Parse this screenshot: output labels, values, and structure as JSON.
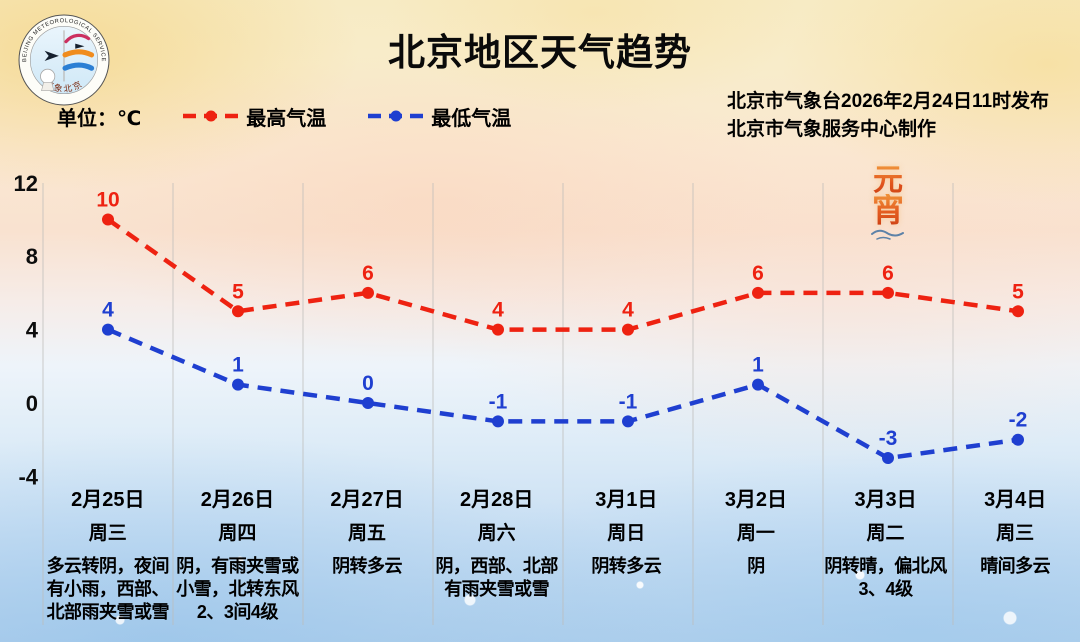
{
  "header": {
    "title": "北京地区天气趋势",
    "issue_line1": "北京市气象台2026年2月24日11时发布",
    "issue_line2": "北京市气象服务中心制作",
    "logo": {
      "ring_text_top": "BEIJING METEOROLOGICAL SERVICE",
      "ring_text_bottom": "气象北京"
    }
  },
  "legend": {
    "unit_label": "单位：℃",
    "max_label": "最高气温",
    "min_label": "最低气温",
    "max_color": "#ee2211",
    "min_color": "#1f3fd0"
  },
  "decoration": {
    "char1": "元",
    "char2": "宵",
    "wave_color": "#5d82a8"
  },
  "chart_data": {
    "type": "line",
    "title": "北京地区天气趋势",
    "unit": "℃",
    "x": [
      "2月25日",
      "2月26日",
      "2月27日",
      "2月28日",
      "3月1日",
      "3月2日",
      "3月3日",
      "3月4日"
    ],
    "weekdays": [
      "周三",
      "周四",
      "周五",
      "周六",
      "周日",
      "周一",
      "周二",
      "周三"
    ],
    "series": [
      {
        "name": "最高气温",
        "color": "#ee2211",
        "values": [
          10,
          5,
          6,
          4,
          4,
          6,
          6,
          5
        ]
      },
      {
        "name": "最低气温",
        "color": "#1f3fd0",
        "values": [
          4,
          1,
          0,
          -1,
          -1,
          1,
          -3,
          -2
        ]
      }
    ],
    "yticks": [
      12,
      8,
      4,
      0,
      -4
    ],
    "ylim": [
      -6,
      13
    ],
    "grid": "vertical-only",
    "gridline_color": "#bdbcb9",
    "legend_position": "top-left",
    "line_style": "dashed",
    "marker": "circle",
    "value_labels": "above-points"
  },
  "days": [
    {
      "date": "2月25日",
      "weekday": "周三",
      "weather": [
        "多云转阴，夜间",
        "有小雨，西部、",
        "北部雨夹雪或雪"
      ]
    },
    {
      "date": "2月26日",
      "weekday": "周四",
      "weather": [
        "阴，有雨夹雪或",
        "小雪，北转东风",
        "2、3间4级"
      ]
    },
    {
      "date": "2月27日",
      "weekday": "周五",
      "weather": [
        "阴转多云"
      ]
    },
    {
      "date": "2月28日",
      "weekday": "周六",
      "weather": [
        "阴，西部、北部",
        "有雨夹雪或雪"
      ]
    },
    {
      "date": "3月1日",
      "weekday": "周日",
      "weather": [
        "阴转多云"
      ]
    },
    {
      "date": "3月2日",
      "weekday": "周一",
      "weather": [
        "阴"
      ]
    },
    {
      "date": "3月3日",
      "weekday": "周二",
      "weather": [
        "阴转晴，偏北风",
        "3、4级"
      ]
    },
    {
      "date": "3月4日",
      "weekday": "周三",
      "weather": [
        "晴间多云"
      ]
    }
  ]
}
